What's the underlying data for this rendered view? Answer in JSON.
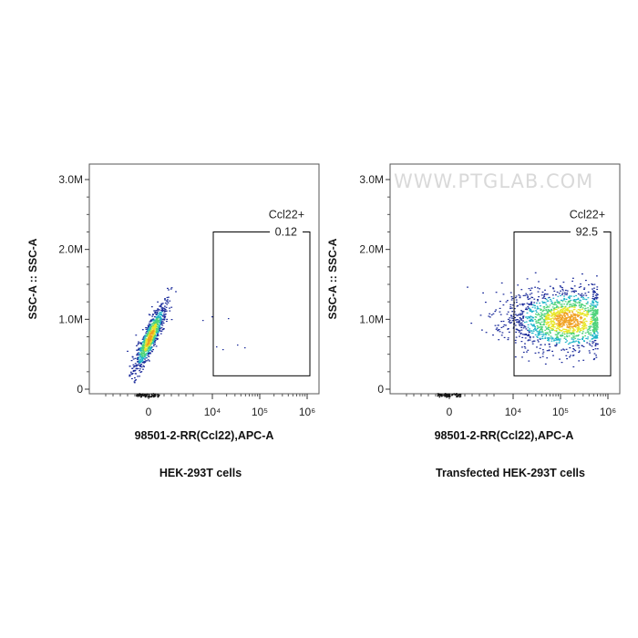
{
  "watermark": "WWW.PTGLAB.COM",
  "colors": {
    "low": "#1a2a9a",
    "mid": "#1fb5c9",
    "high": "#e8e628",
    "peak": "#f0a020",
    "gate": "#000000"
  },
  "chart_data": [
    {
      "type": "scatter",
      "subtype": "flow-cytometry-density",
      "caption": "HEK-293T cells",
      "xlabel": "98501-2-RR(Ccl22),APC-A",
      "ylabel": "SSC-A :: SSC-A",
      "x_scale": "biexponential",
      "x_ticks": [
        "0",
        "10^4",
        "10^5",
        "10^6"
      ],
      "y_ticks": [
        "0",
        "1.0M",
        "2.0M",
        "3.0M"
      ],
      "ylim": [
        0,
        3200000
      ],
      "gate": {
        "name": "Ccl22+",
        "percent": "0.12",
        "x_range": [
          10000,
          1000000
        ],
        "y_range": [
          100000,
          2250000
        ]
      },
      "population": {
        "x_center": 150,
        "y_center": 750000,
        "spread_x": 700,
        "spread_y": 280000
      }
    },
    {
      "type": "scatter",
      "subtype": "flow-cytometry-density",
      "caption": "Transfected HEK-293T cells",
      "xlabel": "98501-2-RR(Ccl22),APC-A",
      "ylabel": "SSC-A :: SSC-A",
      "x_scale": "biexponential",
      "x_ticks": [
        "0",
        "10^4",
        "10^5",
        "10^6"
      ],
      "y_ticks": [
        "0",
        "1.0M",
        "2.0M",
        "3.0M"
      ],
      "ylim": [
        0,
        3200000
      ],
      "gate": {
        "name": "Ccl22+",
        "percent": "92.5",
        "x_range": [
          10000,
          1000000
        ],
        "y_range": [
          100000,
          2250000
        ]
      },
      "population": {
        "x_center": 100000,
        "y_center": 1000000,
        "spread_x": 2.2,
        "spread_y": 450000
      }
    }
  ]
}
